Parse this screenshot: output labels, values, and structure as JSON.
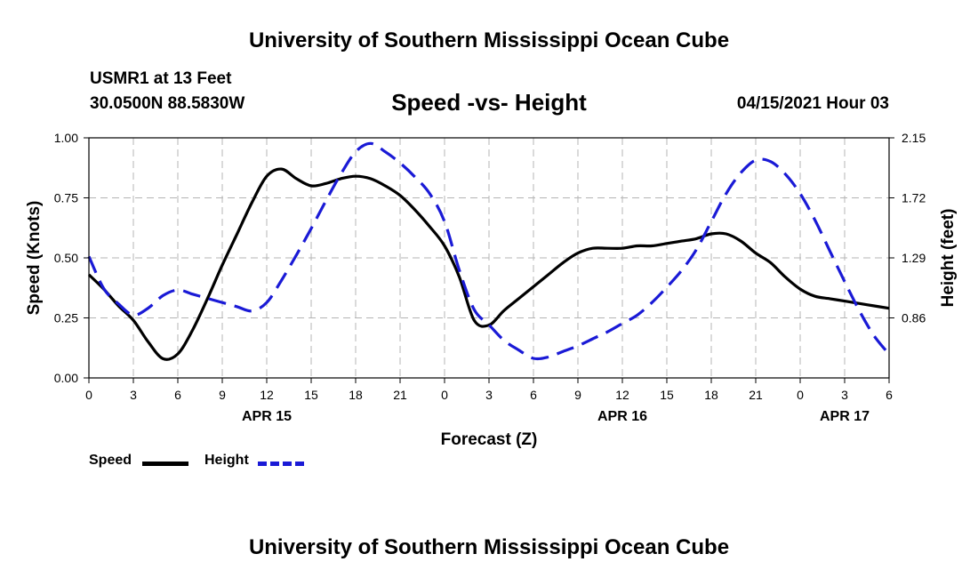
{
  "header": {
    "title": "University of Southern Mississippi Ocean Cube",
    "station": "USMR1 at 13 Feet",
    "coords": "30.0500N  88.5830W",
    "subtitle": "Speed -vs- Height",
    "datetime": "04/15/2021 Hour 03"
  },
  "footer": {
    "title": "University of Southern Mississippi Ocean Cube"
  },
  "legend": {
    "speed_label": "Speed",
    "height_label": "Height"
  },
  "colors": {
    "speed": "#000000",
    "height": "#1a1ad6",
    "grid": "#b4b4b4"
  },
  "chart_data": {
    "type": "line",
    "title": "Speed -vs- Height",
    "xlabel": "Forecast (Z)",
    "ylabel": "Speed (Knots)",
    "y2label": "Height (feet)",
    "xlim": [
      0,
      54
    ],
    "ylim": [
      0,
      1.0
    ],
    "y2lim": [
      0.43,
      2.15
    ],
    "x_ticks": [
      0,
      3,
      6,
      9,
      12,
      15,
      18,
      21,
      24,
      27,
      30,
      33,
      36,
      39,
      42,
      45,
      48,
      51,
      54
    ],
    "x_tick_labels": [
      "0",
      "3",
      "6",
      "9",
      "12",
      "15",
      "18",
      "21",
      "0",
      "3",
      "6",
      "9",
      "12",
      "15",
      "18",
      "21",
      "0",
      "3",
      "6"
    ],
    "y_ticks": [
      0,
      0.25,
      0.5,
      0.75,
      1.0
    ],
    "y_tick_labels": [
      "0.00",
      "0.25",
      "0.50",
      "0.75",
      "1.00"
    ],
    "y2_ticks": [
      0.86,
      1.29,
      1.72,
      2.15
    ],
    "y2_tick_labels": [
      "0.86",
      "1.29",
      "1.72",
      "2.15"
    ],
    "date_labels": [
      {
        "x": 12,
        "label": "APR 15"
      },
      {
        "x": 36,
        "label": "APR 16"
      },
      {
        "x": 51,
        "label": "APR 17"
      }
    ],
    "series": [
      {
        "name": "Speed",
        "axis": "left",
        "x": [
          0,
          1,
          2,
          3,
          4,
          5,
          6,
          7,
          8,
          9,
          10,
          11,
          12,
          13,
          14,
          15,
          16,
          17,
          18,
          19,
          20,
          21,
          22,
          23,
          24,
          25,
          26,
          27,
          28,
          29,
          30,
          31,
          32,
          33,
          34,
          35,
          36,
          37,
          38,
          39,
          40,
          41,
          42,
          43,
          44,
          45,
          46,
          47,
          48,
          49,
          50,
          51,
          52,
          53,
          54
        ],
        "values": [
          0.43,
          0.37,
          0.3,
          0.24,
          0.15,
          0.08,
          0.1,
          0.2,
          0.33,
          0.47,
          0.6,
          0.73,
          0.84,
          0.87,
          0.83,
          0.8,
          0.81,
          0.83,
          0.84,
          0.83,
          0.8,
          0.76,
          0.7,
          0.63,
          0.55,
          0.42,
          0.24,
          0.22,
          0.28,
          0.33,
          0.38,
          0.43,
          0.48,
          0.52,
          0.54,
          0.54,
          0.54,
          0.55,
          0.55,
          0.56,
          0.57,
          0.58,
          0.6,
          0.6,
          0.57,
          0.52,
          0.48,
          0.42,
          0.37,
          0.34,
          0.33,
          0.32,
          0.31,
          0.3,
          0.29
        ]
      },
      {
        "name": "Height",
        "axis": "right",
        "x": [
          0,
          1,
          2,
          3,
          4,
          5,
          6,
          7,
          8,
          9,
          10,
          11,
          12,
          13,
          14,
          15,
          16,
          17,
          18,
          19,
          20,
          21,
          22,
          23,
          24,
          25,
          26,
          27,
          28,
          29,
          30,
          31,
          32,
          33,
          34,
          35,
          36,
          37,
          38,
          39,
          40,
          41,
          42,
          43,
          44,
          45,
          46,
          47,
          48,
          49,
          50,
          51,
          52,
          53,
          54
        ],
        "values": [
          1.3,
          1.07,
          0.96,
          0.88,
          0.93,
          1.02,
          1.06,
          1.03,
          1.0,
          0.97,
          0.94,
          0.91,
          0.97,
          1.13,
          1.31,
          1.5,
          1.7,
          1.89,
          2.05,
          2.11,
          2.05,
          1.97,
          1.87,
          1.75,
          1.55,
          1.2,
          0.92,
          0.81,
          0.7,
          0.63,
          0.57,
          0.58,
          0.62,
          0.66,
          0.71,
          0.76,
          0.82,
          0.88,
          0.97,
          1.08,
          1.2,
          1.35,
          1.55,
          1.75,
          1.9,
          1.99,
          1.98,
          1.89,
          1.75,
          1.56,
          1.34,
          1.12,
          0.91,
          0.73,
          0.6
        ]
      }
    ]
  }
}
